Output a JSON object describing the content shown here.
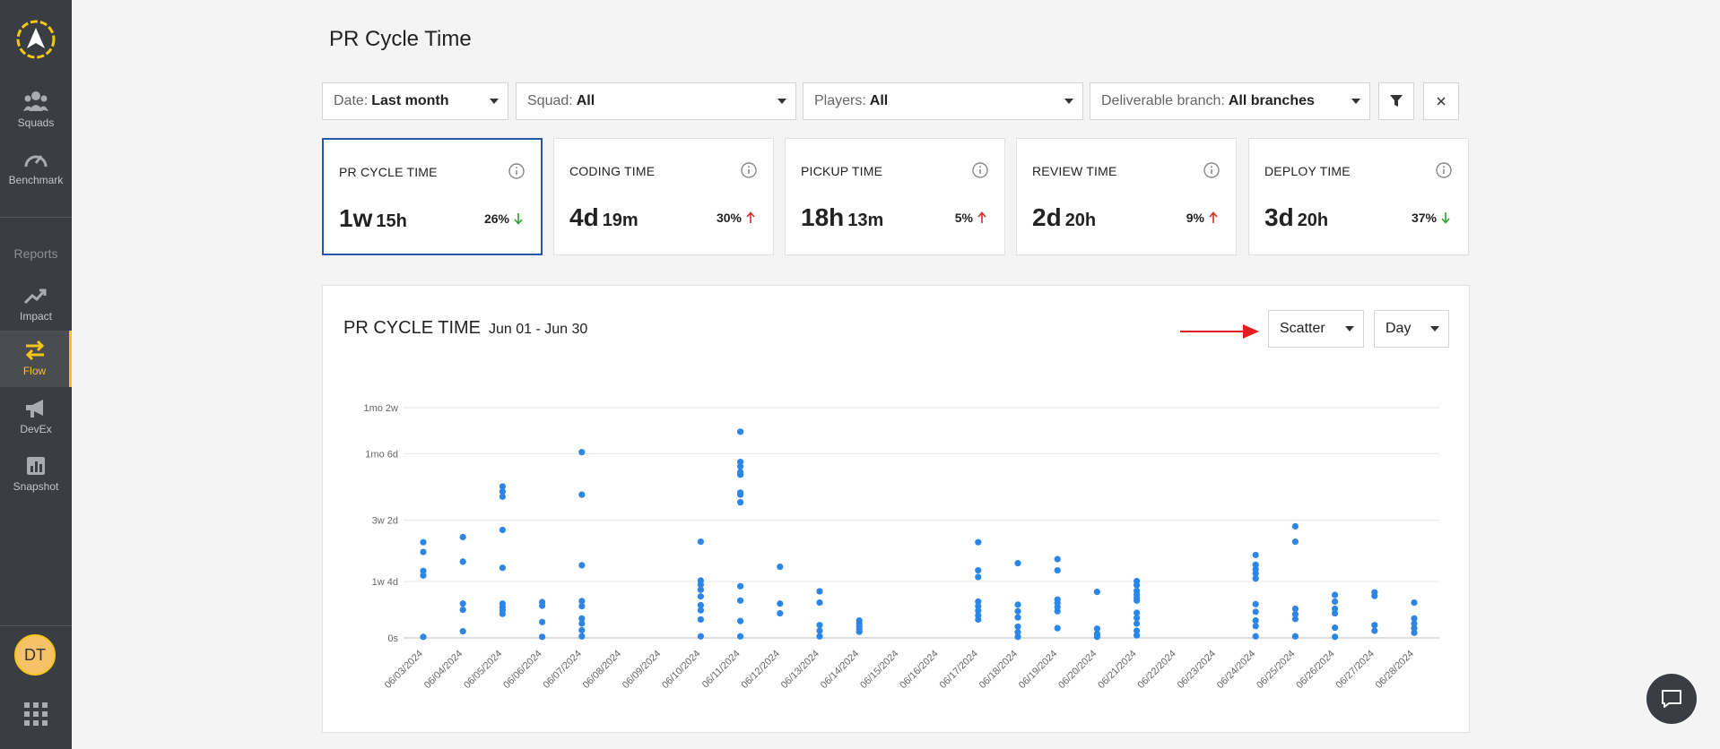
{
  "sidebar": {
    "items": [
      {
        "label": "Squads",
        "icon": "users-icon"
      },
      {
        "label": "Benchmark",
        "icon": "gauge-icon"
      },
      {
        "label": "Impact",
        "icon": "trend-up-icon"
      },
      {
        "label": "Flow",
        "icon": "swap-arrows-icon",
        "active": true
      },
      {
        "label": "DevEx",
        "icon": "megaphone-icon"
      },
      {
        "label": "Snapshot",
        "icon": "bar-chart-icon"
      }
    ],
    "section_label": "Reports",
    "avatar_initials": "DT"
  },
  "page": {
    "title": "PR Cycle Time"
  },
  "filters": [
    {
      "label": "Date:",
      "value": "Last month"
    },
    {
      "label": "Squad:",
      "value": "All"
    },
    {
      "label": "Players:",
      "value": "All"
    },
    {
      "label": "Deliverable branch:",
      "value": "All branches"
    }
  ],
  "cards": [
    {
      "label": "PR CYCLE TIME",
      "big": "1w",
      "small": "15h",
      "delta": "26%",
      "direction": "down",
      "color": "#2e9e2e"
    },
    {
      "label": "CODING TIME",
      "big": "4d",
      "small": "19m",
      "delta": "30%",
      "direction": "up",
      "color": "#d62b2b"
    },
    {
      "label": "PICKUP TIME",
      "big": "18h",
      "small": "13m",
      "delta": "5%",
      "direction": "up",
      "color": "#d62b2b"
    },
    {
      "label": "REVIEW TIME",
      "big": "2d",
      "small": "20h",
      "delta": "9%",
      "direction": "up",
      "color": "#d62b2b"
    },
    {
      "label": "DEPLOY TIME",
      "big": "3d",
      "small": "20h",
      "delta": "37%",
      "direction": "down",
      "color": "#2e9e2e"
    }
  ],
  "panel": {
    "title": "PR CYCLE TIME",
    "range": "Jun 01 - Jun 30",
    "chart_type_select": "Scatter",
    "granularity_select": "Day"
  },
  "colors": {
    "accent": "#f5c518",
    "point": "#2b86e6",
    "selected_border": "#2a56a8",
    "annotation_arrow": "#e02020"
  },
  "chart_data": {
    "type": "scatter",
    "y_tick_labels": [
      "0s",
      "1w 4d",
      "3w 2d",
      "1mo 6d",
      "1mo 2w"
    ],
    "y_unit": "days",
    "y_tick_values": [
      0,
      11,
      23,
      36,
      45
    ],
    "ylim": [
      0,
      45
    ],
    "categories": [
      "06/03/2024",
      "06/04/2024",
      "06/05/2024",
      "06/06/2024",
      "06/07/2024",
      "06/08/2024",
      "06/09/2024",
      "06/10/2024",
      "06/11/2024",
      "06/12/2024",
      "06/13/2024",
      "06/14/2024",
      "06/15/2024",
      "06/16/2024",
      "06/17/2024",
      "06/18/2024",
      "06/19/2024",
      "06/20/2024",
      "06/21/2024",
      "06/22/2024",
      "06/23/2024",
      "06/24/2024",
      "06/25/2024",
      "06/26/2024",
      "06/27/2024",
      "06/28/2024"
    ],
    "grid": true,
    "series": [
      {
        "values": [
          [
            0.2,
            12.2,
            13.1,
            16.8,
            18.7
          ],
          [
            1.3,
            5.5,
            6.7,
            14.9,
            19.7
          ],
          [
            4.7,
            5.4,
            6.0,
            6.7,
            13.7,
            21.1,
            27.6,
            28.6,
            29.6
          ],
          [
            0.2,
            3.1,
            6.3,
            7.0
          ],
          [
            0.3,
            1.5,
            2.8,
            3.8,
            6.2,
            7.2,
            14.2,
            28.0,
            36.3
          ],
          [],
          [],
          [
            0.3,
            3.6,
            5.4,
            6.4,
            8.1,
            9.4,
            10.4,
            11.2,
            18.8
          ],
          [
            0.3,
            3.3,
            7.3,
            10.1,
            28.0,
            28.4,
            26.5,
            31.9,
            32.4,
            33.5,
            34.4,
            40.3
          ],
          [
            4.8,
            6.7,
            13.9
          ],
          [
            0.3,
            1.4,
            2.5,
            6.9,
            9.1
          ],
          [
            1.2,
            1.7,
            2.2,
            2.8,
            3.4
          ],
          [],
          [],
          [
            3.6,
            4.4,
            5.3,
            6.2,
            7.1,
            11.9,
            13.2,
            18.7
          ],
          [
            0.2,
            1.1,
            2.2,
            4.0,
            5.2,
            6.5,
            14.6
          ],
          [
            1.9,
            5.2,
            6.0,
            6.8,
            7.5,
            13.2,
            15.4
          ],
          [
            0.2,
            0.8,
            1.8,
            9.0
          ],
          [
            0.5,
            1.4,
            2.8,
            3.9,
            4.9,
            7.3,
            7.8,
            8.5,
            9.2,
            10.3,
            11.1
          ],
          [],
          [],
          [
            0.3,
            2.3,
            3.4,
            5.1,
            6.6,
            11.6,
            12.6,
            13.4,
            14.3,
            16.2
          ],
          [
            0.3,
            3.7,
            4.6,
            5.7,
            18.8,
            21.8
          ],
          [
            0.2,
            2.0,
            4.8,
            5.7,
            7.1,
            8.4
          ],
          [
            1.4,
            2.5,
            8.2,
            8.9
          ],
          [
            1.0,
            1.9,
            2.8,
            3.8,
            6.9
          ]
        ]
      }
    ]
  }
}
